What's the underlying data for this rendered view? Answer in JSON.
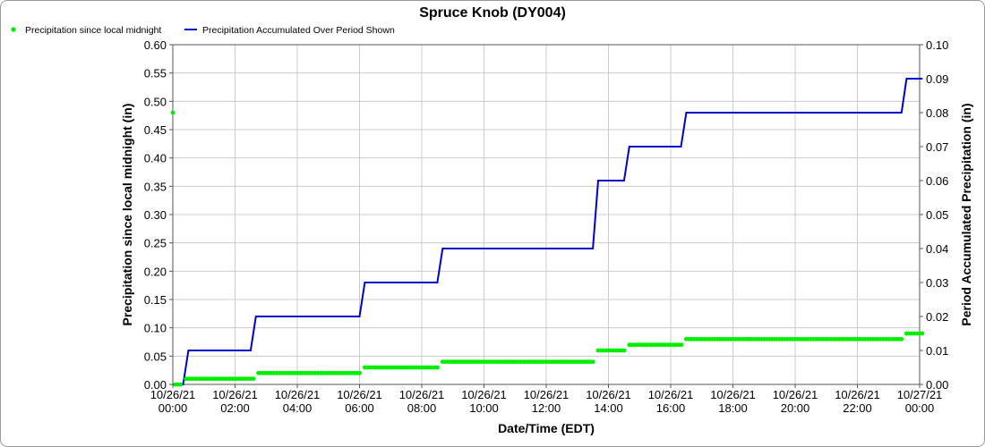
{
  "chart_data": {
    "type": "line",
    "title": "Spruce Knob (DY004)",
    "xlabel": "Date/Time (EDT)",
    "ylabel_left": "Precipitation since local midnight (in)",
    "ylabel_right": "Period Accumulated Precipitation (in)",
    "x_hours_range": [
      0,
      24
    ],
    "y_left_range": [
      0,
      0.6
    ],
    "y_right_range": [
      0,
      0.1
    ],
    "grid": true,
    "legend_placement": "top-left",
    "x_ticks": [
      {
        "hour": 0,
        "date": "10/26/21",
        "time": "00:00"
      },
      {
        "hour": 2,
        "date": "10/26/21",
        "time": "02:00"
      },
      {
        "hour": 4,
        "date": "10/26/21",
        "time": "04:00"
      },
      {
        "hour": 6,
        "date": "10/26/21",
        "time": "06:00"
      },
      {
        "hour": 8,
        "date": "10/26/21",
        "time": "08:00"
      },
      {
        "hour": 10,
        "date": "10/26/21",
        "time": "10:00"
      },
      {
        "hour": 12,
        "date": "10/26/21",
        "time": "12:00"
      },
      {
        "hour": 14,
        "date": "10/26/21",
        "time": "14:00"
      },
      {
        "hour": 16,
        "date": "10/26/21",
        "time": "16:00"
      },
      {
        "hour": 18,
        "date": "10/26/21",
        "time": "18:00"
      },
      {
        "hour": 20,
        "date": "10/26/21",
        "time": "20:00"
      },
      {
        "hour": 22,
        "date": "10/26/21",
        "time": "22:00"
      },
      {
        "hour": 24,
        "date": "10/27/21",
        "time": "00:00"
      }
    ],
    "y_left_ticks": [
      "0.00",
      "0.05",
      "0.10",
      "0.15",
      "0.20",
      "0.25",
      "0.30",
      "0.35",
      "0.40",
      "0.45",
      "0.50",
      "0.55",
      "0.60"
    ],
    "y_right_ticks": [
      "0.00",
      "0.01",
      "0.02",
      "0.03",
      "0.04",
      "0.05",
      "0.06",
      "0.07",
      "0.08",
      "0.09",
      "0.10"
    ],
    "series": [
      {
        "name": "Precipitation since local midnight",
        "axis": "left",
        "style": "points",
        "color": "#00ee00",
        "steps": [
          {
            "from": 0.0,
            "to": 0.0,
            "value": 0.48
          },
          {
            "from": 0.08,
            "to": 0.25,
            "value": 0.0
          },
          {
            "from": 0.42,
            "to": 2.58,
            "value": 0.01
          },
          {
            "from": 2.75,
            "to": 6.0,
            "value": 0.02
          },
          {
            "from": 6.17,
            "to": 8.5,
            "value": 0.03
          },
          {
            "from": 8.67,
            "to": 13.5,
            "value": 0.04
          },
          {
            "from": 13.67,
            "to": 14.5,
            "value": 0.06
          },
          {
            "from": 14.67,
            "to": 16.33,
            "value": 0.07
          },
          {
            "from": 16.5,
            "to": 23.42,
            "value": 0.08
          },
          {
            "from": 23.58,
            "to": 24.08,
            "value": 0.09
          }
        ]
      },
      {
        "name": "Precipitation Accumulated Over Period Shown",
        "axis": "right",
        "style": "step-line",
        "color": "#0000cc",
        "points": [
          [
            0.0,
            0.0
          ],
          [
            0.33,
            0.0
          ],
          [
            0.5,
            0.01
          ],
          [
            2.5,
            0.01
          ],
          [
            2.67,
            0.02
          ],
          [
            6.0,
            0.02
          ],
          [
            6.17,
            0.03
          ],
          [
            8.5,
            0.03
          ],
          [
            8.67,
            0.04
          ],
          [
            13.5,
            0.04
          ],
          [
            13.67,
            0.06
          ],
          [
            14.5,
            0.06
          ],
          [
            14.67,
            0.07
          ],
          [
            16.33,
            0.07
          ],
          [
            16.5,
            0.08
          ],
          [
            23.42,
            0.08
          ],
          [
            23.58,
            0.09
          ],
          [
            24.08,
            0.09
          ]
        ]
      }
    ]
  }
}
